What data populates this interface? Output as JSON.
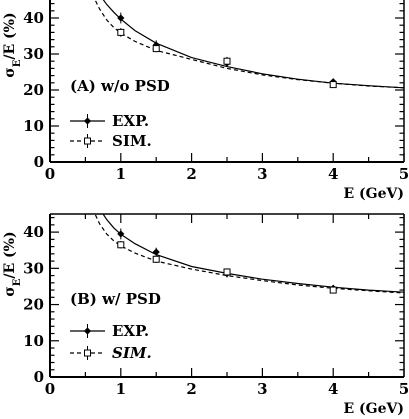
{
  "chart_data": [
    {
      "type": "scatter",
      "title": "",
      "panel_label": "(A) w/o PSD",
      "xlabel": "E (GeV)",
      "ylabel": "σE/E (%)",
      "xlim": [
        0,
        5
      ],
      "ylim": [
        0,
        45
      ],
      "x_ticks": [
        "0",
        "1",
        "2",
        "3",
        "4",
        "5"
      ],
      "y_ticks": [
        "0",
        "10",
        "20",
        "30",
        "40"
      ],
      "legend": [
        "EXP.",
        "SIM."
      ],
      "series": [
        {
          "name": "EXP.",
          "marker": "filled-diamond",
          "line": "solid",
          "x": [
            1.0,
            1.5,
            2.5,
            4.0
          ],
          "y": [
            40.0,
            32.5,
            27.5,
            22.3
          ],
          "yerr": [
            1.5,
            1.3,
            1.0,
            0.8
          ],
          "curve": {
            "x": [
              0.7,
              0.8,
              0.9,
              1.0,
              1.2,
              1.5,
              2.0,
              2.5,
              3.0,
              3.5,
              4.0,
              4.5,
              5.0
            ],
            "y": [
              46.5,
              43.8,
              41.6,
              39.7,
              36.5,
              33.0,
              29.0,
              26.5,
              24.5,
              23.0,
              21.9,
              21.2,
              20.6
            ]
          }
        },
        {
          "name": "SIM.",
          "marker": "open-square",
          "line": "dashed",
          "x": [
            1.0,
            1.5,
            2.5,
            4.0
          ],
          "y": [
            36.0,
            31.5,
            28.0,
            21.5
          ],
          "yerr": [
            1.2,
            1.0,
            1.2,
            0.6
          ],
          "curve": {
            "x": [
              0.6,
              0.7,
              0.8,
              0.9,
              1.0,
              1.2,
              1.5,
              2.0,
              2.5,
              3.0,
              3.5,
              4.0,
              4.5,
              5.0
            ],
            "y": [
              46.5,
              42.5,
              39.5,
              37.4,
              35.8,
              33.5,
              31.0,
              28.5,
              26.0,
              24.2,
              22.9,
              21.9,
              21.1,
              20.6
            ]
          }
        }
      ]
    },
    {
      "type": "scatter",
      "title": "",
      "panel_label": "(B) w/ PSD",
      "xlabel": "E (GeV)",
      "ylabel": "σE/E (%)",
      "xlim": [
        0,
        5
      ],
      "ylim": [
        0,
        45
      ],
      "x_ticks": [
        "0",
        "1",
        "2",
        "3",
        "4",
        "5"
      ],
      "y_ticks": [
        "0",
        "10",
        "20",
        "30",
        "40"
      ],
      "legend": [
        "EXP.",
        "SIM."
      ],
      "series": [
        {
          "name": "EXP.",
          "marker": "filled-diamond",
          "line": "solid",
          "x": [
            1.0,
            1.5,
            2.5,
            4.0
          ],
          "y": [
            39.5,
            34.5,
            28.5,
            24.5
          ],
          "yerr": [
            1.5,
            1.2,
            1.0,
            0.8
          ],
          "curve": {
            "x": [
              0.7,
              0.8,
              0.9,
              1.0,
              1.2,
              1.5,
              2.0,
              2.5,
              3.0,
              3.5,
              4.0,
              4.5,
              5.0
            ],
            "y": [
              46.5,
              43.5,
              41.2,
              39.4,
              36.8,
              33.8,
              30.5,
              28.6,
              27.0,
              25.8,
              24.8,
              24.0,
              23.4
            ]
          }
        },
        {
          "name": "SIM.",
          "marker": "open-square",
          "line": "dashed",
          "x": [
            1.0,
            1.5,
            2.5,
            4.0
          ],
          "y": [
            36.5,
            32.5,
            29.0,
            24.0
          ],
          "yerr": [
            1.0,
            1.0,
            1.0,
            0.6
          ],
          "curve": {
            "x": [
              0.6,
              0.7,
              0.8,
              0.9,
              1.0,
              1.2,
              1.5,
              2.0,
              2.5,
              3.0,
              3.5,
              4.0,
              4.5,
              5.0
            ],
            "y": [
              46.5,
              42.3,
              39.5,
              37.6,
              36.2,
              34.2,
              32.0,
              29.8,
              28.0,
              26.6,
              25.4,
              24.5,
              23.8,
              23.2
            ]
          }
        }
      ]
    }
  ]
}
